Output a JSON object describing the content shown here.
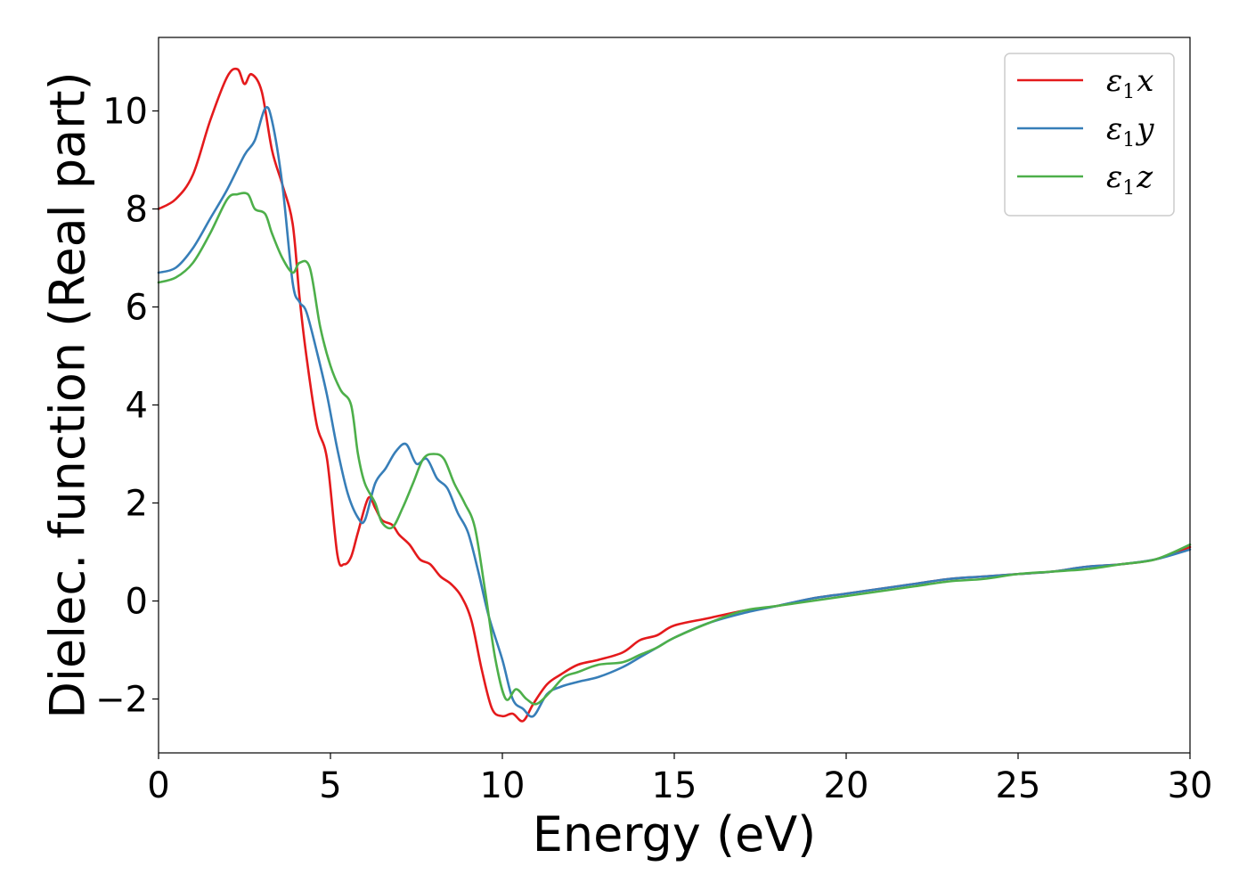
{
  "chart_data": {
    "type": "line",
    "xlabel": "Energy (eV)",
    "ylabel": "Dielec. function (Real part)",
    "xlim": [
      0,
      30
    ],
    "ylim": [
      -3.1,
      11.5
    ],
    "xticks": [
      0,
      5,
      10,
      15,
      20,
      25,
      30
    ],
    "xtick_labels": [
      "0",
      "5",
      "10",
      "15",
      "20",
      "25",
      "30"
    ],
    "yticks": [
      -2,
      0,
      2,
      4,
      6,
      8,
      10
    ],
    "ytick_labels": [
      "−2",
      "0",
      "2",
      "4",
      "6",
      "8",
      "10"
    ],
    "grid": false,
    "legend_position": "top-right",
    "series": [
      {
        "name": "ε1x",
        "legend_base": "ε",
        "legend_sub": "1",
        "legend_tail": "x",
        "color": "#e41a1c",
        "x": [
          0,
          0.5,
          1.0,
          1.5,
          2.0,
          2.3,
          2.5,
          2.7,
          3.0,
          3.3,
          3.6,
          3.9,
          4.1,
          4.3,
          4.6,
          4.9,
          5.2,
          5.4,
          5.6,
          5.8,
          6.1,
          6.3,
          6.5,
          6.8,
          7.0,
          7.3,
          7.6,
          7.9,
          8.2,
          8.5,
          8.8,
          9.1,
          9.4,
          9.7,
          10.0,
          10.3,
          10.6,
          10.9,
          11.3,
          11.7,
          12.2,
          12.8,
          13.5,
          14.0,
          14.5,
          15.0,
          16.0,
          17.0,
          18.0,
          19.0,
          20.0,
          21.0,
          22.0,
          23.0,
          24.0,
          25.0,
          26.0,
          27.0,
          28.0,
          29.0,
          30.0
        ],
        "y": [
          8.0,
          8.2,
          8.7,
          9.8,
          10.7,
          10.85,
          10.55,
          10.75,
          10.4,
          9.2,
          8.5,
          7.7,
          6.2,
          5.0,
          3.6,
          2.9,
          0.95,
          0.75,
          0.9,
          1.4,
          2.1,
          1.9,
          1.65,
          1.55,
          1.35,
          1.15,
          0.85,
          0.75,
          0.5,
          0.35,
          0.1,
          -0.4,
          -1.4,
          -2.2,
          -2.35,
          -2.3,
          -2.45,
          -2.1,
          -1.7,
          -1.5,
          -1.3,
          -1.2,
          -1.05,
          -0.8,
          -0.7,
          -0.5,
          -0.35,
          -0.2,
          -0.1,
          0.05,
          0.15,
          0.25,
          0.35,
          0.45,
          0.5,
          0.55,
          0.6,
          0.7,
          0.75,
          0.85,
          1.1
        ]
      },
      {
        "name": "ε1y",
        "legend_base": "ε",
        "legend_sub": "1",
        "legend_tail": "y",
        "color": "#377eb8",
        "x": [
          0,
          0.5,
          1.0,
          1.5,
          2.0,
          2.5,
          2.8,
          3.1,
          3.3,
          3.6,
          3.9,
          4.1,
          4.3,
          4.6,
          4.9,
          5.2,
          5.5,
          5.8,
          6.0,
          6.3,
          6.6,
          6.9,
          7.2,
          7.5,
          7.8,
          8.1,
          8.4,
          8.7,
          9.0,
          9.3,
          9.6,
          10.0,
          10.3,
          10.6,
          10.9,
          11.3,
          11.7,
          12.2,
          12.8,
          13.5,
          14.0,
          14.5,
          15.0,
          16.0,
          17.0,
          18.0,
          19.0,
          20.0,
          21.0,
          22.0,
          23.0,
          24.0,
          25.0,
          26.0,
          27.0,
          28.0,
          29.0,
          30.0
        ],
        "y": [
          6.7,
          6.8,
          7.2,
          7.8,
          8.4,
          9.1,
          9.4,
          10.05,
          9.8,
          8.5,
          6.5,
          6.1,
          5.9,
          5.1,
          4.2,
          3.1,
          2.2,
          1.7,
          1.65,
          2.4,
          2.7,
          3.05,
          3.2,
          2.8,
          2.9,
          2.5,
          2.3,
          1.8,
          1.4,
          0.6,
          -0.3,
          -1.2,
          -2.0,
          -2.2,
          -2.35,
          -1.9,
          -1.75,
          -1.65,
          -1.55,
          -1.35,
          -1.15,
          -0.95,
          -0.75,
          -0.45,
          -0.25,
          -0.1,
          0.05,
          0.15,
          0.25,
          0.35,
          0.45,
          0.5,
          0.55,
          0.6,
          0.7,
          0.75,
          0.85,
          1.05
        ]
      },
      {
        "name": "ε1z",
        "legend_base": "ε",
        "legend_sub": "1",
        "legend_tail": "z",
        "color": "#4daf4a",
        "x": [
          0,
          0.5,
          1.0,
          1.5,
          2.0,
          2.3,
          2.6,
          2.8,
          3.1,
          3.3,
          3.6,
          3.9,
          4.1,
          4.4,
          4.7,
          5.0,
          5.3,
          5.6,
          5.8,
          6.0,
          6.3,
          6.5,
          6.8,
          7.1,
          7.4,
          7.7,
          8.0,
          8.3,
          8.6,
          8.9,
          9.2,
          9.5,
          9.8,
          10.1,
          10.4,
          10.7,
          11.0,
          11.4,
          11.8,
          12.2,
          12.8,
          13.5,
          14.0,
          14.5,
          15.0,
          16.0,
          17.0,
          18.0,
          19.0,
          20.0,
          21.0,
          22.0,
          23.0,
          24.0,
          25.0,
          26.0,
          27.0,
          28.0,
          29.0,
          30.0
        ],
        "y": [
          6.5,
          6.6,
          6.9,
          7.5,
          8.2,
          8.3,
          8.3,
          8.0,
          7.9,
          7.5,
          7.0,
          6.7,
          6.9,
          6.8,
          5.6,
          4.8,
          4.3,
          4.0,
          3.0,
          2.4,
          2.0,
          1.6,
          1.5,
          1.9,
          2.4,
          2.9,
          3.0,
          2.9,
          2.4,
          2.0,
          1.5,
          0.2,
          -1.2,
          -2.0,
          -1.8,
          -2.0,
          -2.1,
          -1.85,
          -1.55,
          -1.45,
          -1.3,
          -1.25,
          -1.1,
          -0.95,
          -0.75,
          -0.45,
          -0.2,
          -0.1,
          0.0,
          0.1,
          0.2,
          0.3,
          0.4,
          0.45,
          0.55,
          0.6,
          0.65,
          0.75,
          0.85,
          1.15
        ]
      }
    ]
  }
}
